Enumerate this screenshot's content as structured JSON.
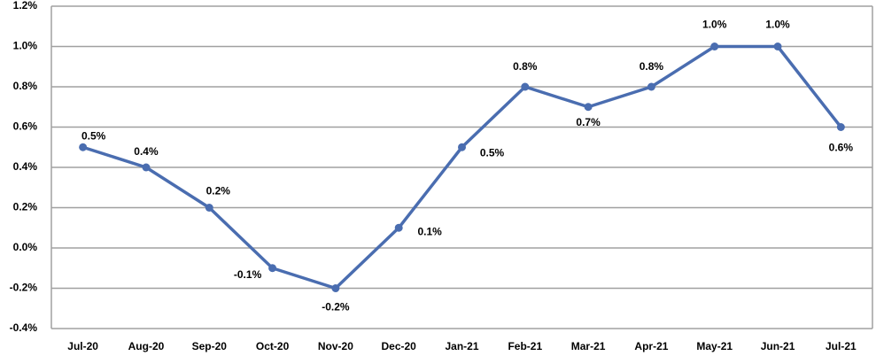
{
  "chart_data": {
    "type": "line",
    "categories": [
      "Jul-20",
      "Aug-20",
      "Sep-20",
      "Oct-20",
      "Nov-20",
      "Dec-20",
      "Jan-21",
      "Feb-21",
      "Mar-21",
      "Apr-21",
      "May-21",
      "Jun-21",
      "Jul-21"
    ],
    "values": [
      0.5,
      0.4,
      0.2,
      -0.1,
      -0.2,
      0.1,
      0.5,
      0.8,
      0.7,
      0.8,
      1.0,
      1.0,
      0.6
    ],
    "value_labels": [
      "0.5%",
      "0.4%",
      "0.2%",
      "-0.1%",
      "-0.2%",
      "0.1%",
      "0.5%",
      "0.8%",
      "0.7%",
      "0.8%",
      "1.0%",
      "1.0%",
      "0.6%"
    ],
    "color": "#4a6db0",
    "ylim": [
      -0.4,
      1.2
    ],
    "yticks": [
      {
        "value": -0.4,
        "label": "-0.4%"
      },
      {
        "value": -0.2,
        "label": "-0.2%"
      },
      {
        "value": 0,
        "label": "0.0%"
      },
      {
        "value": 0.2,
        "label": "0.2%"
      },
      {
        "value": 0.4,
        "label": "0.4%"
      },
      {
        "value": 0.6,
        "label": "0.6%"
      },
      {
        "value": 0.8,
        "label": "0.8%"
      },
      {
        "value": 1.0,
        "label": "1.0%"
      },
      {
        "value": 1.2,
        "label": "1.2%"
      }
    ],
    "grid": true
  }
}
